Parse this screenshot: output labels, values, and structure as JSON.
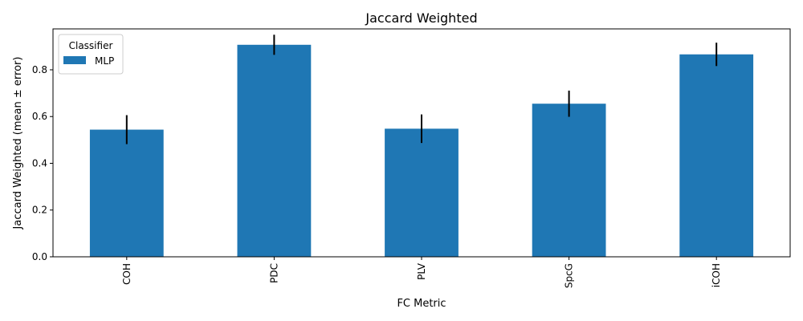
{
  "chart_data": {
    "type": "bar",
    "title": "Jaccard Weighted",
    "xlabel": "FC Metric",
    "ylabel": "Jaccard Weighted (mean ± error)",
    "categories": [
      "COH",
      "PDC",
      "PLV",
      "SpcG",
      "iCOH"
    ],
    "series": [
      {
        "name": "MLP",
        "values": [
          0.544,
          0.907,
          0.548,
          0.655,
          0.866
        ],
        "errors": [
          0.062,
          0.043,
          0.061,
          0.056,
          0.05
        ],
        "color": "#1f77b4"
      }
    ],
    "ylim": [
      0,
      0.975
    ],
    "yticks": [
      0.0,
      0.2,
      0.4,
      0.6,
      0.8
    ],
    "ytick_labels": [
      "0.0",
      "0.2",
      "0.4",
      "0.6",
      "0.8"
    ],
    "legend": {
      "title": "Classifier",
      "position": "top-left"
    },
    "grid": false
  }
}
